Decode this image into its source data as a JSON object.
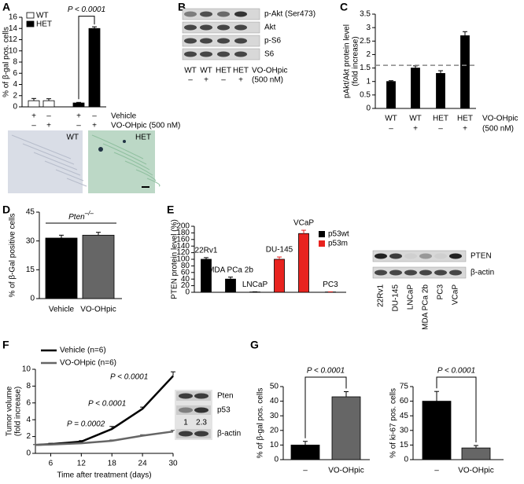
{
  "chart_data": [
    {
      "panel": "A",
      "type": "bar",
      "ylabel": "% of β-gal pos. cells",
      "ylim": [
        0,
        16
      ],
      "yticks": [
        0,
        2,
        4,
        6,
        8,
        10,
        12,
        14,
        16
      ],
      "series": [
        {
          "name": "WT",
          "color": "#ffffff",
          "values": [
            1.1,
            1.1,
            null,
            null
          ],
          "errors": [
            0.4,
            0.35,
            null,
            null
          ]
        },
        {
          "name": "HET",
          "color": "#000000",
          "values": [
            null,
            null,
            0.7,
            14
          ],
          "errors": [
            null,
            null,
            0.1,
            0.3
          ]
        }
      ],
      "annotation": "P < 0.0001",
      "treatments": [
        {
          "name": "Vehicle",
          "values": [
            "+",
            "–",
            "+",
            "–"
          ]
        },
        {
          "name": "VO-OHpic (500 nM)",
          "values": [
            "–",
            "+",
            "–",
            "+"
          ]
        }
      ],
      "image_labels": [
        "WT",
        "HET"
      ]
    },
    {
      "panel": "B",
      "type": "blot",
      "rows": [
        "p-Akt (Ser473)",
        "Akt",
        "p-S6",
        "S6"
      ],
      "lanes": [
        "WT",
        "WT",
        "HET",
        "HET"
      ],
      "treatment": [
        "–",
        "+",
        "–",
        "+"
      ],
      "treatment_label": [
        "VO-OHpic",
        "(500 nM)"
      ]
    },
    {
      "panel": "C",
      "type": "bar",
      "ylabel": [
        "pAkt/Akt protein level",
        "(fold increase)"
      ],
      "ylim": [
        0,
        3.5
      ],
      "yticks": [
        0,
        0.5,
        1,
        1.5,
        2,
        2.5,
        3,
        3.5
      ],
      "categories": [
        "WT",
        "WT",
        "HET",
        "HET"
      ],
      "values": [
        1.0,
        1.5,
        1.3,
        2.7
      ],
      "errors": [
        0.03,
        0.08,
        0.1,
        0.15
      ],
      "color": "#000000",
      "reference_line": 1.6,
      "treatment": [
        "–",
        "+",
        "–",
        "+"
      ],
      "treatment_label": [
        "VO-OHpic",
        "(500 nM)"
      ]
    },
    {
      "panel": "D",
      "type": "bar",
      "ylabel": "% of β-Gal positive cells",
      "ylim": [
        0,
        45
      ],
      "yticks": [
        0,
        15,
        30,
        45
      ],
      "categories": [
        "Vehicle",
        "VO-OHpic"
      ],
      "values": [
        31.5,
        33
      ],
      "errors": [
        1.5,
        1.5
      ],
      "colors": [
        "#000000",
        "#666666"
      ],
      "annotation": {
        "gene": "Pten",
        "superscript": "–/–"
      }
    },
    {
      "panel": "E",
      "type": "bar",
      "ylabel": "PTEN protein level (%)",
      "ylim": [
        0,
        200
      ],
      "yticks": [
        0,
        20,
        40,
        60,
        80,
        100,
        120,
        140,
        160,
        180,
        200
      ],
      "categories": [
        "22Rv1",
        "MDA PCa 2b",
        "LNCaP",
        "DU-145",
        "VCaP",
        "PC3"
      ],
      "series": [
        {
          "name": "p53wt",
          "color": "#000000",
          "values": [
            100,
            40,
            1,
            null,
            null,
            null
          ],
          "errors": [
            5,
            6,
            0.5,
            null,
            null,
            null
          ]
        },
        {
          "name": "p53m",
          "color": "#e8231f",
          "values": [
            null,
            null,
            null,
            100,
            178,
            1
          ],
          "errors": [
            null,
            null,
            null,
            7,
            10,
            0.5
          ]
        }
      ]
    },
    {
      "type": "blot",
      "rows": [
        "PTEN",
        "β-actin"
      ],
      "lanes": [
        "22Rv1",
        "DU-145",
        "LNCaP",
        "MDA PCa 2b",
        "PC3",
        "VCaP"
      ]
    },
    {
      "panel": "F",
      "type": "line",
      "xlabel": "Time after treatment (days)",
      "ylabel": [
        "Tumor volume",
        "(fold increase)"
      ],
      "x": [
        3,
        6,
        12,
        18,
        24,
        30
      ],
      "xlim": [
        3,
        30
      ],
      "xticks": [
        6,
        12,
        18,
        24,
        30
      ],
      "ylim": [
        0,
        10
      ],
      "yticks": [
        0,
        2,
        4,
        6,
        8,
        10
      ],
      "series": [
        {
          "name": "Vehicle (n=6)",
          "color": "#000000",
          "values": [
            1.0,
            1.1,
            1.4,
            2.9,
            5.3,
            9.2
          ],
          "errors": [
            0.05,
            0.1,
            0.12,
            0.3,
            0.2,
            0.5
          ]
        },
        {
          "name": "VO-OHpic (n=6)",
          "color": "#666666",
          "values": [
            1.0,
            1.05,
            1.2,
            1.5,
            2.1,
            2.6
          ],
          "errors": [
            0.05,
            0.08,
            0.08,
            0.1,
            0.12,
            0.15
          ]
        }
      ],
      "annotations": [
        "P = 0.0002",
        "P < 0.0001",
        "P < 0.0001"
      ],
      "blot_rows": [
        "Pten",
        "p53",
        "β-actin"
      ],
      "quantification": [
        "1",
        "2.3"
      ]
    },
    {
      "panel": "G",
      "type": "bar",
      "ylabel": "% of β-gal pos. cells",
      "ylim": [
        0,
        50
      ],
      "yticks": [
        0,
        10,
        20,
        30,
        40,
        50
      ],
      "categories": [
        "–",
        "VO-OHpic"
      ],
      "values": [
        10,
        43
      ],
      "errors": [
        2.5,
        3.5
      ],
      "colors": [
        "#000000",
        "#666666"
      ],
      "annotation": "P < 0.0001"
    },
    {
      "type": "bar",
      "ylabel": "% of ki-67 pos. cells",
      "ylim": [
        0,
        75
      ],
      "yticks": [
        0,
        15,
        30,
        45,
        60,
        75
      ],
      "categories": [
        "–",
        "VO-OHpic"
      ],
      "values": [
        60,
        12
      ],
      "errors": [
        10,
        2.5
      ],
      "colors": [
        "#000000",
        "#666666"
      ],
      "annotation": "P < 0.0001"
    }
  ]
}
